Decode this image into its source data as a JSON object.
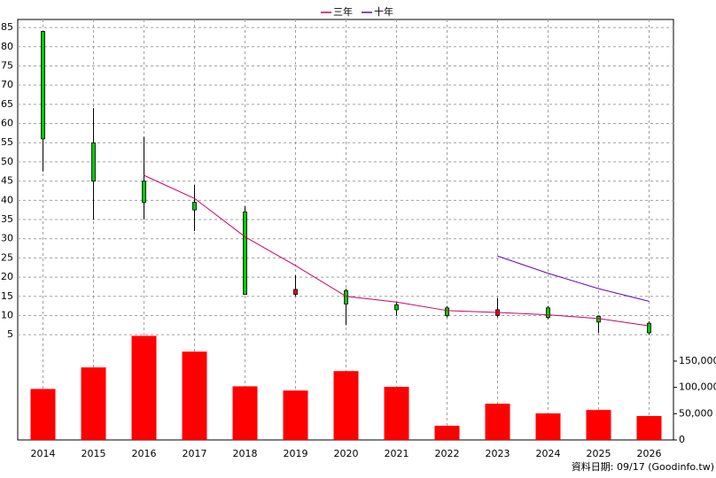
{
  "chart_data": {
    "type": "candlestick",
    "categories": [
      "2014",
      "2015",
      "2016",
      "2017",
      "2018",
      "2019",
      "2020",
      "2021",
      "2022",
      "2023",
      "2024",
      "2025",
      "2026"
    ],
    "open": [
      84,
      55,
      45,
      39.5,
      37,
      15.5,
      16.5,
      12.8,
      12,
      10,
      12,
      9.8,
      8
    ],
    "high": [
      84,
      64,
      56.5,
      44,
      38.5,
      20.5,
      17,
      13.5,
      12.5,
      14.5,
      12.5,
      10,
      8.5
    ],
    "low": [
      47.5,
      35,
      35,
      32,
      15.5,
      15,
      7.5,
      10,
      9.5,
      9.5,
      9,
      5.5,
      5
    ],
    "close": [
      56,
      45,
      39.5,
      37.5,
      15.5,
      16.8,
      13,
      11.5,
      10,
      11.5,
      9.5,
      8.3,
      5.5
    ],
    "up_color": "#ff0000",
    "down_color": "#00cc00",
    "series": [
      {
        "name": "三年",
        "color": "#cc0066",
        "values": [
          null,
          null,
          46.5,
          40.5,
          30.5,
          23,
          15,
          13.5,
          11.3,
          10.8,
          10.2,
          9.2,
          7.3
        ]
      },
      {
        "name": "十年",
        "color": "#6600cc",
        "values": [
          null,
          null,
          null,
          null,
          null,
          null,
          null,
          null,
          null,
          25.5,
          21,
          17,
          13.7
        ]
      }
    ],
    "volume": {
      "axis": "y2",
      "color": "#ff0000",
      "values": [
        97000,
        138000,
        198000,
        168000,
        102000,
        94000,
        131000,
        101000,
        27000,
        69000,
        50500,
        57000,
        45500
      ]
    },
    "ylim": [
      -22.4,
      87.1
    ],
    "yticks": [
      5,
      10,
      15,
      20,
      25,
      30,
      35,
      40,
      45,
      50,
      55,
      60,
      65,
      70,
      75,
      80,
      85
    ],
    "y2lim": [
      0,
      800000
    ],
    "y2ticks": [
      0,
      {
        "value": 50000,
        "label": "50,000"
      },
      {
        "value": 100000,
        "label": "100,000"
      },
      {
        "value": 150000,
        "label": "150,000"
      }
    ],
    "grid": true,
    "note": "資料日期: 09/17 (Goodinfo.tw)"
  }
}
